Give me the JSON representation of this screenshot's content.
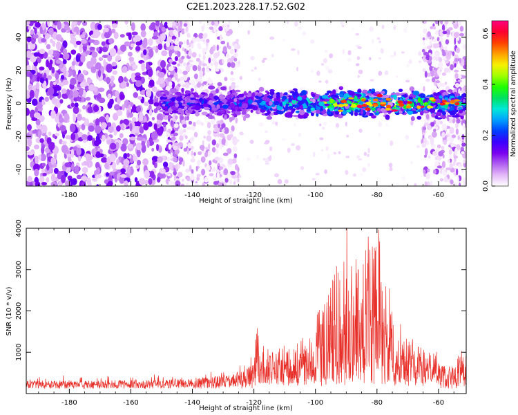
{
  "figure_title": "C2E1.2023.228.17.52.G02",
  "colors": {
    "snr_line": "#e8302a",
    "axis": "#000000",
    "background": "#ffffff"
  },
  "chart_data": [
    {
      "type": "heatmap",
      "title": "",
      "xlabel": "Height of straight line (km)",
      "ylabel": "Frequency (Hz)",
      "xlim": [
        -194,
        -51
      ],
      "ylim": [
        -50,
        50
      ],
      "x_ticks": [
        -180,
        -160,
        -140,
        -120,
        -100,
        -80,
        -60
      ],
      "y_ticks": [
        -40,
        -20,
        0,
        20,
        40
      ],
      "colorbar": {
        "label": "Normalized spectral amplitude",
        "range": [
          0.0,
          0.65
        ],
        "ticks": [
          "0.0",
          "0.2",
          "0.4",
          "0.6"
        ],
        "colormap": [
          "#ffffff",
          "#e4b8f8",
          "#b060f0",
          "#7a00f0",
          "#3a00ff",
          "#0040ff",
          "#00a0ff",
          "#00e8d8",
          "#00e060",
          "#20ff00",
          "#a0ff00",
          "#f8f000",
          "#ffa000",
          "#ff4000",
          "#ff0030",
          "#ff0080"
        ]
      },
      "features": {
        "band_center_hz": 0,
        "band_start_km": -150,
        "band_half_width_hz": [
          5,
          9
        ],
        "peak_amplitude": 0.65,
        "peak_region_km": [
          -92,
          -72
        ],
        "broadband_noise_below_km": -148,
        "sparse_region_km": [
          -125,
          -65
        ]
      }
    },
    {
      "type": "line",
      "title": "",
      "xlabel": "Height of straight line (km)",
      "ylabel": "SNR (10 * v/v)",
      "xlim": [
        -194,
        -51
      ],
      "ylim": [
        0,
        4000
      ],
      "x_ticks": [
        -180,
        -160,
        -140,
        -120,
        -100,
        -80,
        -60
      ],
      "y_ticks": [
        1000,
        2000,
        3000,
        4000
      ],
      "series": [
        {
          "x": [
            -194,
            -185,
            -175,
            -165,
            -155,
            -148,
            -142,
            -136,
            -130,
            -125,
            -122,
            -120,
            -119.5,
            -118,
            -115,
            -110,
            -106,
            -103,
            -100,
            -97,
            -95,
            -93.5,
            -92,
            -90.5,
            -90,
            -89,
            -87,
            -85,
            -83,
            -81,
            -79.5,
            -78,
            -76,
            -74,
            -72,
            -70,
            -68,
            -66,
            -64,
            -62,
            -60,
            -58,
            -56,
            -54,
            -53.5,
            -52,
            -51
          ],
          "y": [
            250,
            260,
            250,
            260,
            270,
            280,
            300,
            330,
            380,
            440,
            560,
            700,
            1650,
            850,
            900,
            900,
            1000,
            1300,
            1600,
            2000,
            2300,
            3000,
            2600,
            3200,
            4000,
            3400,
            3000,
            2900,
            3500,
            3300,
            3800,
            3200,
            2500,
            2000,
            1500,
            1200,
            1000,
            900,
            800,
            750,
            700,
            650,
            600,
            650,
            1150,
            700,
            600
          ]
        }
      ]
    }
  ]
}
